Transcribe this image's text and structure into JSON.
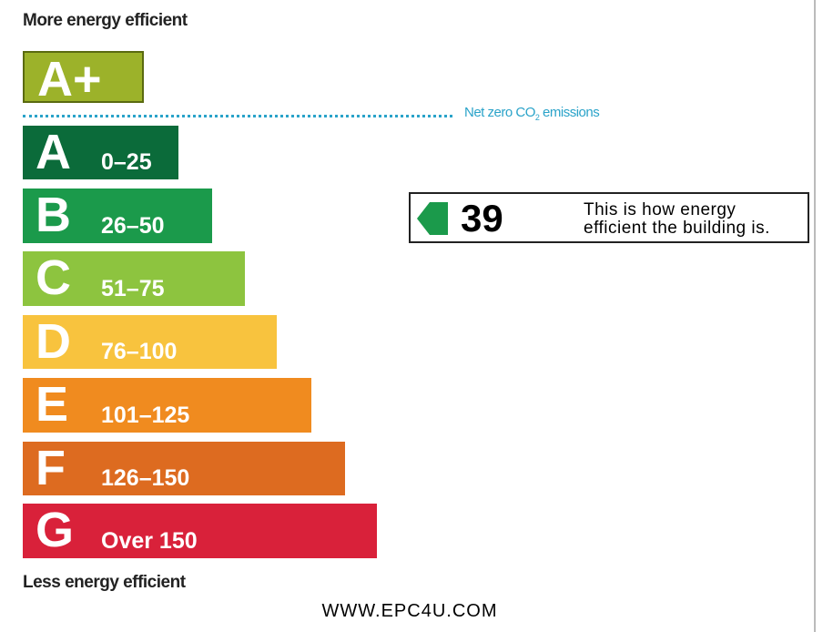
{
  "top_label": "More energy efficient",
  "bottom_label": "Less energy efficient",
  "net_zero": {
    "text": "Net zero CO",
    "subscript": "2",
    "suffix": " emissions",
    "color": "#2aa3c9"
  },
  "bands": [
    {
      "letter": "A+",
      "color": "#9cb22a"
    },
    {
      "letter": "A",
      "range": "0–25",
      "color": "#0b6b3a"
    },
    {
      "letter": "B",
      "range": "26–50",
      "color": "#1b9a4b"
    },
    {
      "letter": "C",
      "range": "51–75",
      "color": "#8dc43f"
    },
    {
      "letter": "D",
      "range": "76–100",
      "color": "#f8c33e"
    },
    {
      "letter": "E",
      "range": "101–125",
      "color": "#f08b1f"
    },
    {
      "letter": "F",
      "range": "126–150",
      "color": "#dd6b20"
    },
    {
      "letter": "G",
      "range": "Over 150",
      "color": "#d9213a"
    }
  ],
  "rating": {
    "value": 39,
    "lines": [
      "This is how energy",
      "efficient the building is."
    ],
    "color": "#1b9a4b"
  },
  "footer": "WWW.EPC4U.COM"
}
